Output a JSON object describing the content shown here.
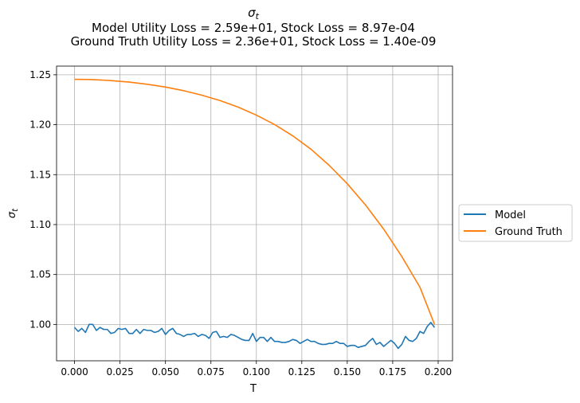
{
  "chart_data": {
    "type": "line",
    "title": "σ_t",
    "title_symbol": "σ",
    "title_subscript": "t",
    "subtitle_lines": [
      "Model Utility Loss = 2.59e+01, Stock Loss = 8.97e-04",
      "Ground Truth Utility Loss = 2.36e+01, Stock Loss = 1.40e-09"
    ],
    "xlabel": "T",
    "ylabel_symbol": "σ",
    "ylabel_subscript": "t",
    "xlim": [
      -0.0099,
      0.2079
    ],
    "ylim": [
      0.9636,
      1.2587
    ],
    "xticks": [
      0.0,
      0.025,
      0.05,
      0.075,
      0.1,
      0.125,
      0.15,
      0.175,
      0.2
    ],
    "xtick_labels": [
      "0.000",
      "0.025",
      "0.050",
      "0.075",
      "0.100",
      "0.125",
      "0.150",
      "0.175",
      "0.200"
    ],
    "yticks": [
      1.0,
      1.05,
      1.1,
      1.15,
      1.2,
      1.25
    ],
    "ytick_labels": [
      "1.00",
      "1.05",
      "1.10",
      "1.15",
      "1.20",
      "1.25"
    ],
    "grid": true,
    "legend_position": "outside right",
    "series": [
      {
        "name": "Model",
        "color": "#1f77b4",
        "x": [
          0.0,
          0.002,
          0.004,
          0.006,
          0.008,
          0.01,
          0.012,
          0.014,
          0.016,
          0.018,
          0.02,
          0.022,
          0.024,
          0.026,
          0.028,
          0.03,
          0.032,
          0.034,
          0.036,
          0.038,
          0.04,
          0.042,
          0.044,
          0.046,
          0.048,
          0.05,
          0.052,
          0.054,
          0.056,
          0.058,
          0.06,
          0.062,
          0.064,
          0.066,
          0.068,
          0.07,
          0.072,
          0.074,
          0.076,
          0.078,
          0.08,
          0.082,
          0.084,
          0.086,
          0.088,
          0.09,
          0.092,
          0.094,
          0.096,
          0.098,
          0.1,
          0.102,
          0.104,
          0.106,
          0.108,
          0.11,
          0.112,
          0.114,
          0.116,
          0.118,
          0.12,
          0.122,
          0.124,
          0.126,
          0.128,
          0.13,
          0.132,
          0.134,
          0.136,
          0.138,
          0.14,
          0.142,
          0.144,
          0.146,
          0.148,
          0.15,
          0.152,
          0.154,
          0.156,
          0.158,
          0.16,
          0.162,
          0.164,
          0.166,
          0.168,
          0.17,
          0.172,
          0.174,
          0.176,
          0.178,
          0.18,
          0.182,
          0.184,
          0.186,
          0.188,
          0.19,
          0.192,
          0.194,
          0.196,
          0.198
        ],
        "y": [
          0.997,
          0.993,
          0.996,
          0.992,
          1.0,
          1.0,
          0.994,
          0.997,
          0.995,
          0.995,
          0.991,
          0.992,
          0.996,
          0.995,
          0.996,
          0.991,
          0.991,
          0.995,
          0.991,
          0.995,
          0.994,
          0.994,
          0.992,
          0.993,
          0.996,
          0.99,
          0.994,
          0.996,
          0.991,
          0.99,
          0.988,
          0.99,
          0.99,
          0.991,
          0.988,
          0.99,
          0.989,
          0.986,
          0.992,
          0.993,
          0.987,
          0.988,
          0.987,
          0.99,
          0.989,
          0.987,
          0.985,
          0.984,
          0.984,
          0.991,
          0.983,
          0.987,
          0.987,
          0.983,
          0.987,
          0.983,
          0.983,
          0.982,
          0.982,
          0.983,
          0.985,
          0.984,
          0.981,
          0.983,
          0.985,
          0.983,
          0.983,
          0.981,
          0.98,
          0.98,
          0.981,
          0.981,
          0.983,
          0.981,
          0.981,
          0.978,
          0.979,
          0.979,
          0.977,
          0.978,
          0.979,
          0.983,
          0.986,
          0.98,
          0.982,
          0.978,
          0.981,
          0.984,
          0.981,
          0.976,
          0.98,
          0.988,
          0.984,
          0.983,
          0.986,
          0.993,
          0.991,
          0.998,
          1.002,
          0.997
        ]
      },
      {
        "name": "Ground Truth",
        "color": "#ff7f0e",
        "x": [
          0.0,
          0.01,
          0.02,
          0.03,
          0.04,
          0.05,
          0.06,
          0.07,
          0.08,
          0.09,
          0.1,
          0.11,
          0.12,
          0.13,
          0.14,
          0.15,
          0.16,
          0.17,
          0.18,
          0.19,
          0.198
        ],
        "y": [
          1.2455,
          1.2452,
          1.2442,
          1.2427,
          1.2405,
          1.2377,
          1.2341,
          1.2296,
          1.2242,
          1.2176,
          1.2096,
          1.2002,
          1.1889,
          1.1755,
          1.1594,
          1.1409,
          1.1197,
          1.0955,
          1.068,
          1.0372,
          1.0
        ]
      }
    ]
  }
}
